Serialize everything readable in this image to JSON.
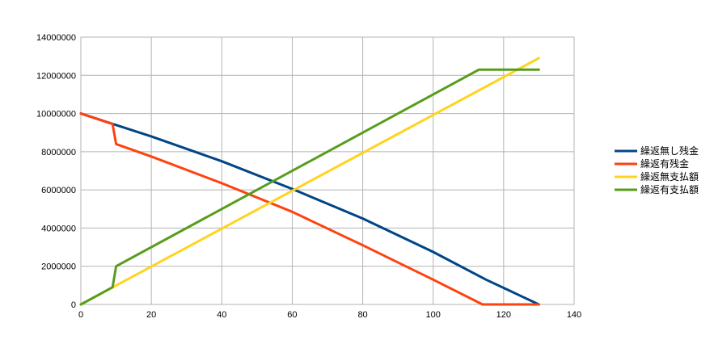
{
  "chart_data": {
    "type": "line",
    "title": "",
    "xlabel": "",
    "ylabel": "",
    "xlim": [
      0,
      140
    ],
    "ylim": [
      0,
      14000000
    ],
    "x_ticks": [
      "0",
      "20",
      "40",
      "60",
      "80",
      "100",
      "120",
      "140"
    ],
    "y_ticks": [
      "0",
      "2000000",
      "4000000",
      "6000000",
      "8000000",
      "10000000",
      "12000000",
      "14000000"
    ],
    "grid": true,
    "legend_position": "right",
    "series": [
      {
        "name": "繰返無し残金",
        "color": "#004586",
        "points": [
          [
            0,
            10000000
          ],
          [
            10,
            9400000
          ],
          [
            20,
            8800000
          ],
          [
            40,
            7500000
          ],
          [
            60,
            6050000
          ],
          [
            80,
            4500000
          ],
          [
            100,
            2750000
          ],
          [
            115,
            1300000
          ],
          [
            130,
            0
          ]
        ]
      },
      {
        "name": "繰返有残金",
        "color": "#ff420e",
        "points": [
          [
            0,
            10000000
          ],
          [
            9,
            9450000
          ],
          [
            10,
            8400000
          ],
          [
            20,
            7750000
          ],
          [
            40,
            6350000
          ],
          [
            60,
            4850000
          ],
          [
            80,
            3100000
          ],
          [
            100,
            1300000
          ],
          [
            114,
            0
          ],
          [
            130,
            0
          ]
        ]
      },
      {
        "name": "繰返無支払額",
        "color": "#ffd320",
        "points": [
          [
            0,
            0
          ],
          [
            130,
            12900000
          ]
        ]
      },
      {
        "name": "繰返有支払額",
        "color": "#579d1c",
        "points": [
          [
            0,
            0
          ],
          [
            9,
            900000
          ],
          [
            10,
            2000000
          ],
          [
            113,
            12300000
          ],
          [
            130,
            12300000
          ]
        ]
      }
    ]
  }
}
